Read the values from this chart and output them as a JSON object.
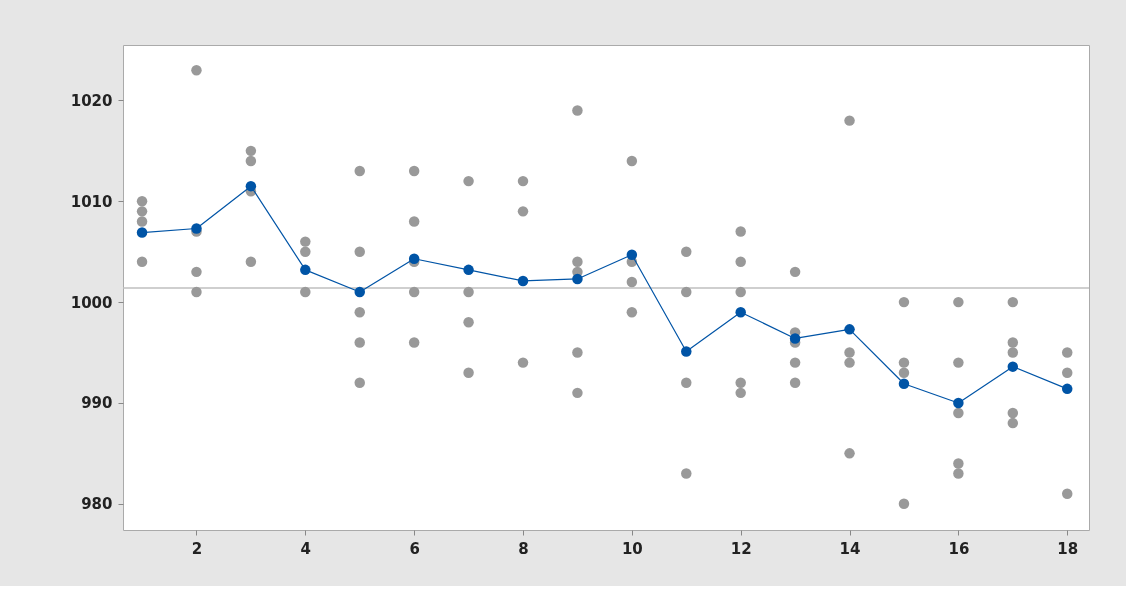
{
  "chart_data": {
    "type": "scatter",
    "xlim": [
      0.65,
      18.4
    ],
    "xticks": [
      2,
      4,
      6,
      8,
      10,
      12,
      14,
      16,
      18
    ],
    "ylim": [
      977.4,
      1025.5
    ],
    "yticks": [
      980,
      990,
      1000,
      1010,
      1020
    ],
    "grid": false,
    "ref_lines": [
      {
        "axis": "y",
        "value": 1001.4,
        "color": "#bfbfbf",
        "line_style": "solid"
      }
    ],
    "series": [
      {
        "color": "#999999",
        "marker": "circle",
        "x": [
          1,
          1,
          1,
          1,
          2,
          2,
          2,
          2,
          3,
          3,
          3,
          3,
          4,
          4,
          4,
          5,
          5,
          5,
          5,
          5,
          6,
          6,
          6,
          6,
          6,
          7,
          7,
          7,
          7,
          8,
          8,
          8,
          9,
          9,
          9,
          9,
          9,
          10,
          10,
          10,
          10,
          11,
          11,
          11,
          11,
          12,
          12,
          12,
          12,
          12,
          13,
          13,
          13,
          13,
          13,
          14,
          14,
          14,
          14,
          15,
          15,
          15,
          15,
          16,
          16,
          16,
          16,
          16,
          17,
          17,
          17,
          17,
          17,
          18,
          18,
          18
        ],
        "values": [
          1010,
          1009,
          1008,
          1004,
          1023,
          1007,
          1003,
          1001,
          1015,
          1014,
          1011,
          1004,
          1006,
          1005,
          1001,
          1013,
          1005,
          999,
          996,
          992,
          1013,
          1008,
          1004,
          1001,
          996,
          1012,
          1001,
          998,
          993,
          1012,
          1009,
          994,
          1019,
          1004,
          1003,
          995,
          991,
          1014,
          1004,
          1002,
          999,
          1005,
          1001,
          992,
          983,
          1007,
          1004,
          1001,
          992,
          991,
          1003,
          997,
          996,
          994,
          992,
          1018,
          995,
          994,
          985,
          1000,
          994,
          993,
          980,
          1000,
          994,
          989,
          984,
          983,
          1000,
          996,
          995,
          989,
          988,
          995,
          993,
          981
        ]
      },
      {
        "type": "line",
        "color": "#0054a6",
        "marker": "circle",
        "line_style": "solid",
        "x": [
          1,
          2,
          3,
          4,
          5,
          6,
          7,
          8,
          9,
          10,
          11,
          12,
          13,
          14,
          15,
          16,
          17,
          18
        ],
        "values": [
          1006.9,
          1007.3,
          1011.5,
          1003.2,
          1001.0,
          1004.3,
          1003.2,
          1002.1,
          1002.3,
          1004.7,
          995.1,
          999.0,
          996.4,
          997.3,
          991.9,
          990.0,
          993.6,
          991.4
        ]
      }
    ]
  }
}
